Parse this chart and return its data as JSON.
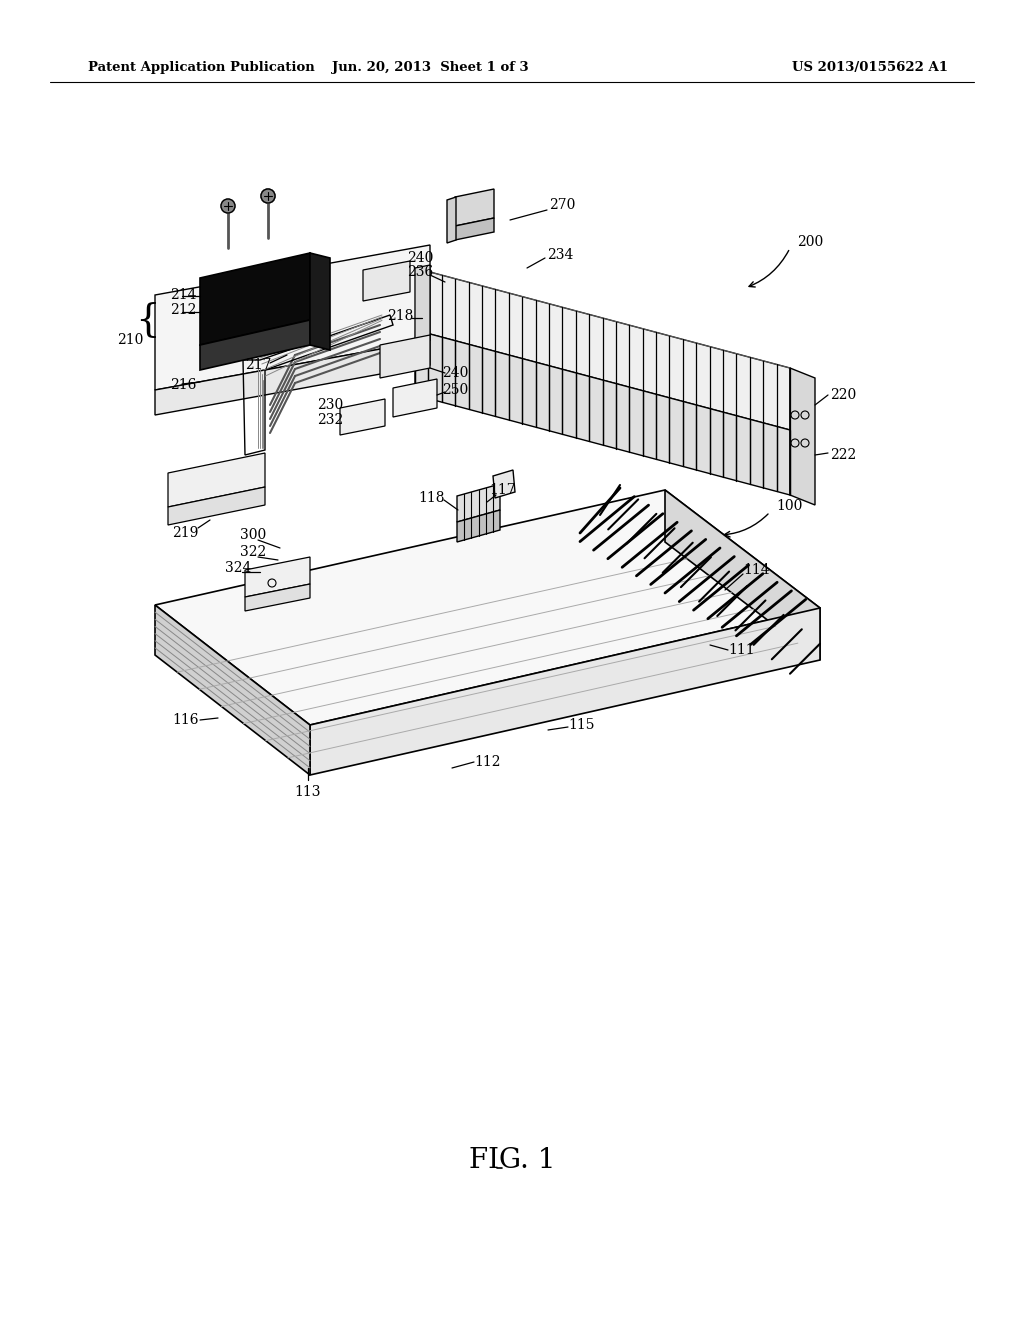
{
  "bg_color": "#ffffff",
  "header_left": "Patent Application Publication",
  "header_center": "Jun. 20, 2013  Sheet 1 of 3",
  "header_right": "US 2013/0155622 A1",
  "fig_label": "FIG. 1"
}
